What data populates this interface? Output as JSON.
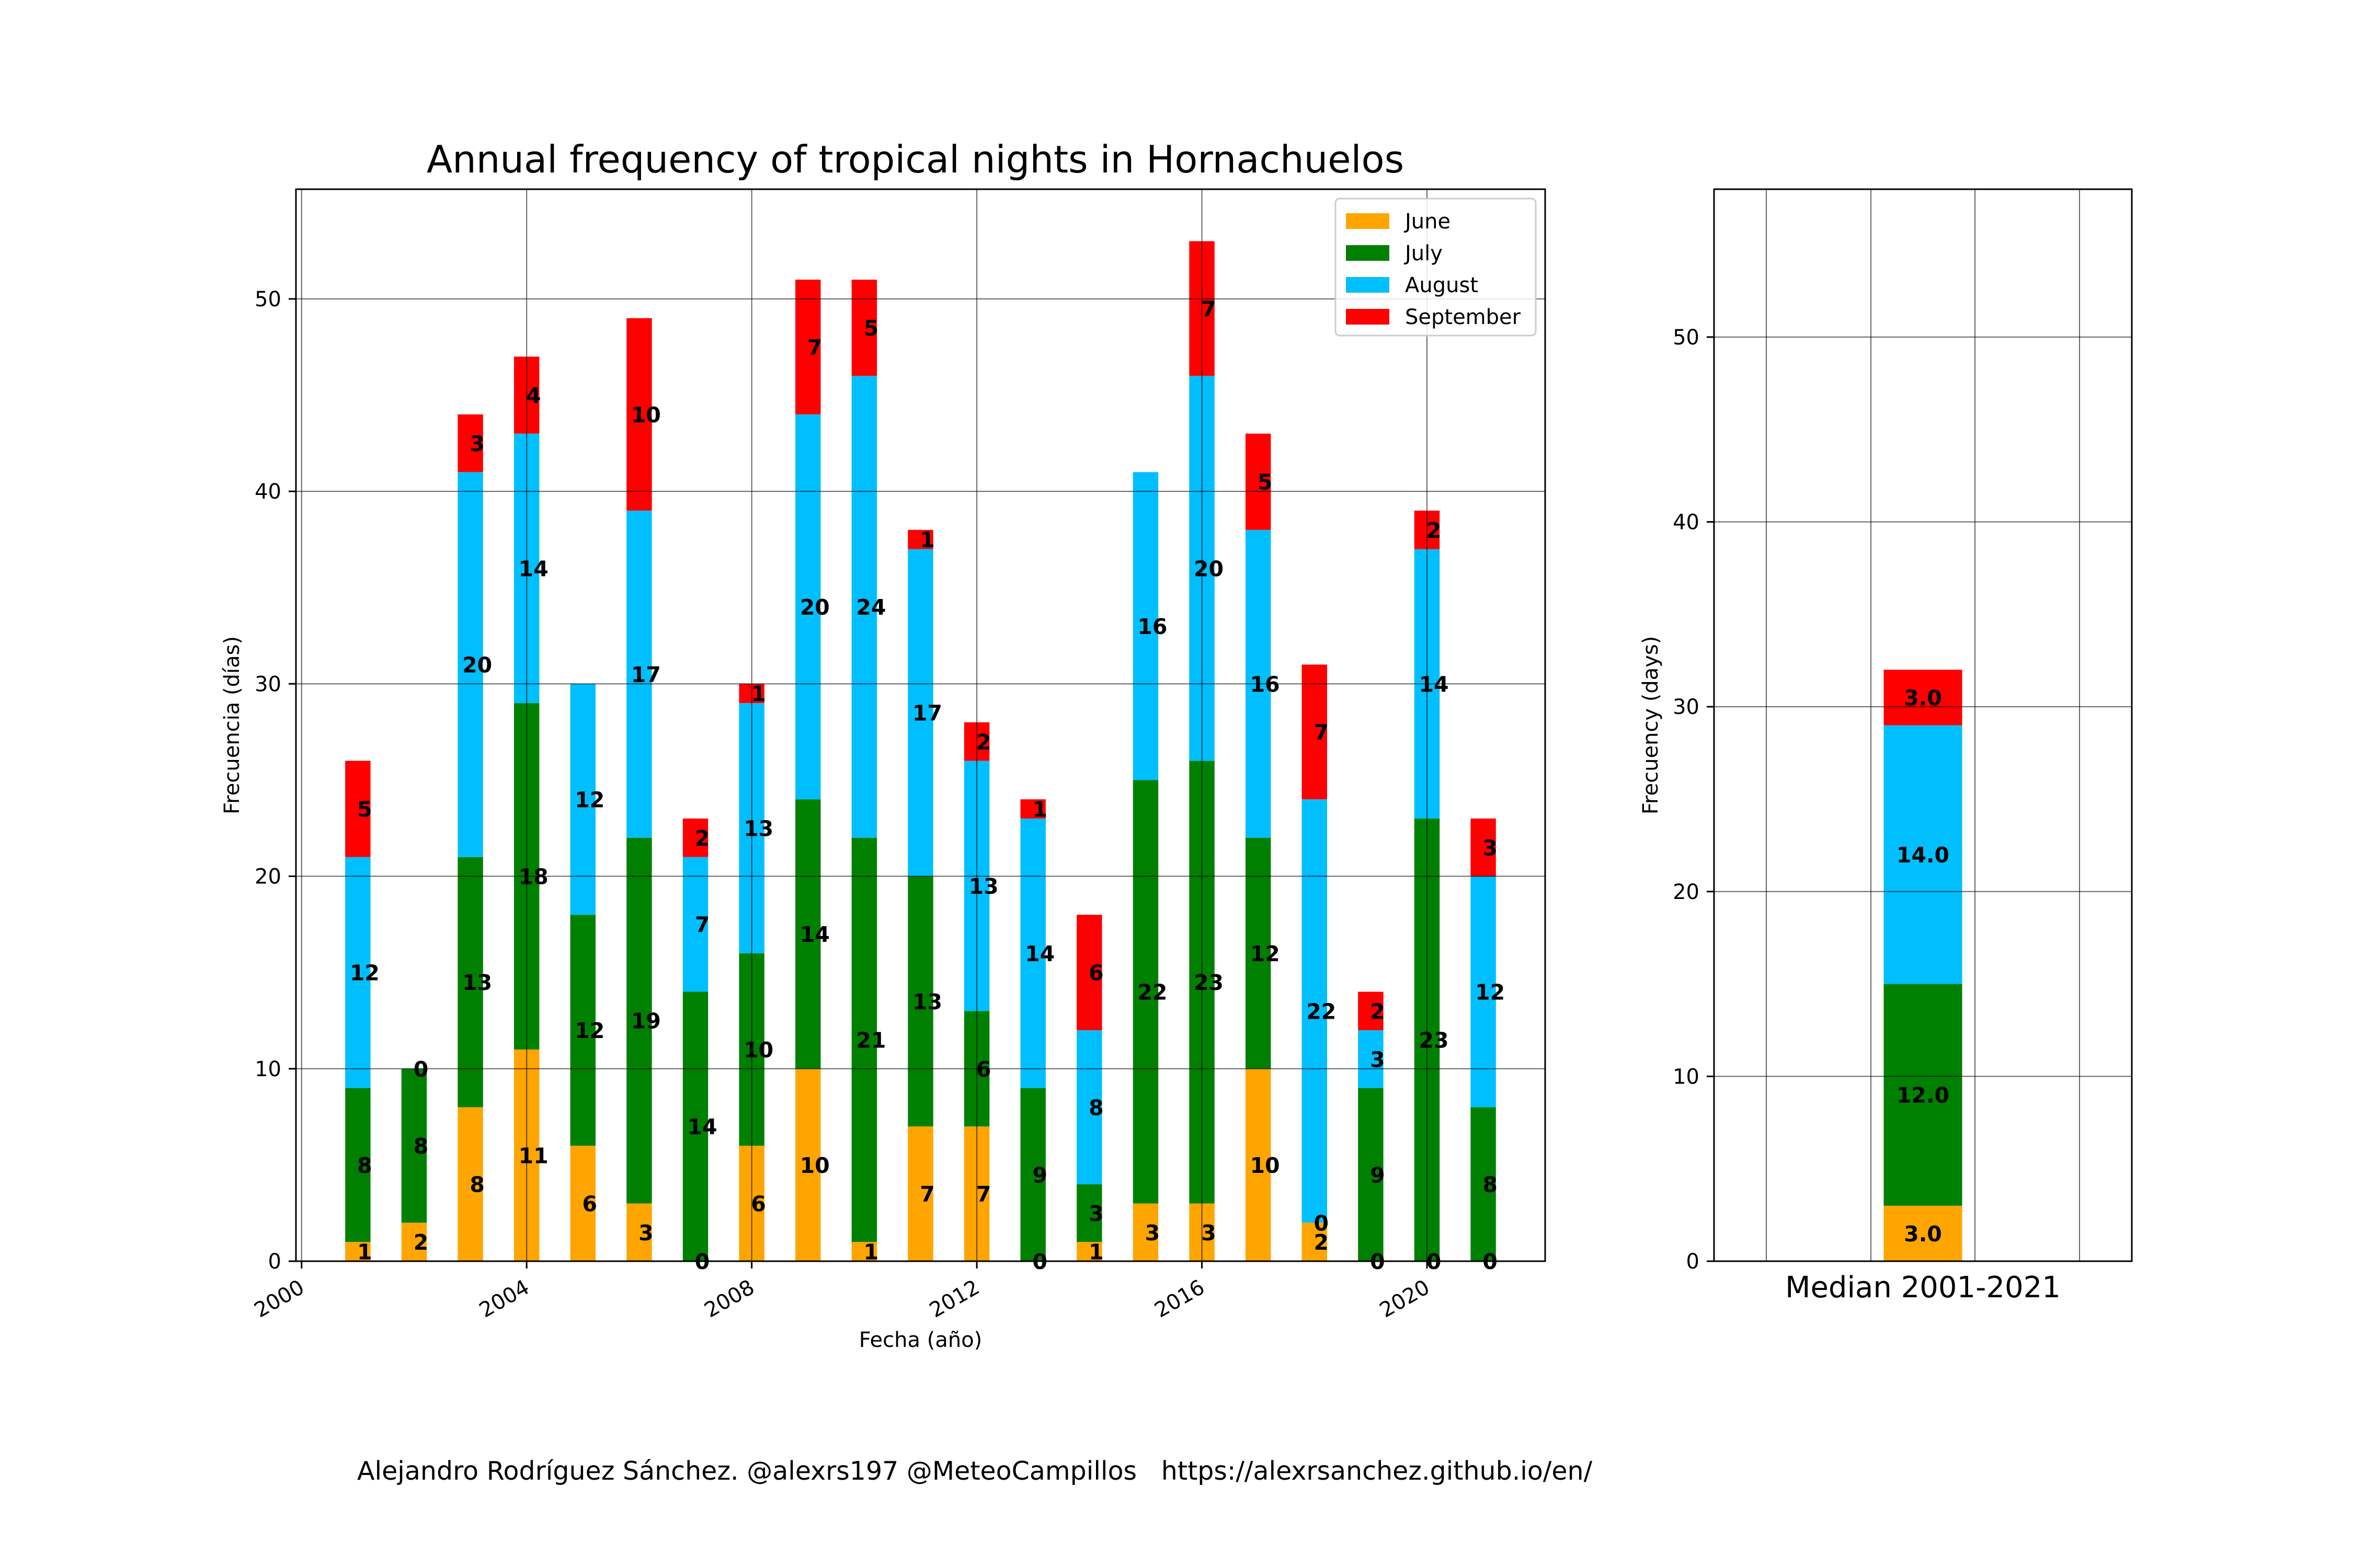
{
  "chart_data": [
    {
      "type": "bar",
      "stacked": true,
      "title": "Annual frequency of tropical nights in Hornachuelos",
      "xlabel": "Fecha (año)",
      "ylabel": "Frecuencia (días)",
      "xlim": [
        1999.9,
        2022.1
      ],
      "ylim": [
        0,
        55.7
      ],
      "xticks": [
        2000,
        2004,
        2008,
        2012,
        2016,
        2020
      ],
      "xtick_labels": [
        "2000",
        "2004",
        "2008",
        "2012",
        "2016",
        "2020"
      ],
      "yticks": [
        0,
        10,
        20,
        30,
        40,
        50
      ],
      "ytick_labels": [
        "0",
        "10",
        "20",
        "30",
        "40",
        "50"
      ],
      "grid": true,
      "legend_position": "top-right",
      "x": [
        2001,
        2002,
        2003,
        2004,
        2005,
        2006,
        2007,
        2008,
        2009,
        2010,
        2011,
        2012,
        2013,
        2014,
        2015,
        2016,
        2017,
        2018,
        2019,
        2020,
        2021
      ],
      "series": [
        {
          "name": "June",
          "color": "#ffa500",
          "values": [
            1,
            2,
            8,
            11,
            6,
            3,
            0,
            6,
            10,
            1,
            7,
            7,
            0,
            1,
            3,
            3,
            10,
            2,
            0,
            0,
            0
          ],
          "labels": [
            "1",
            "2",
            "8",
            "11",
            "6",
            "3",
            "0",
            "6",
            "10",
            "1",
            "7",
            "7",
            "0",
            "1",
            "3",
            "3",
            "10",
            "2",
            "0",
            "0",
            "0"
          ]
        },
        {
          "name": "July",
          "color": "#008000",
          "values": [
            8,
            8,
            13,
            18,
            12,
            19,
            14,
            10,
            14,
            21,
            13,
            6,
            9,
            3,
            22,
            23,
            12,
            0,
            9,
            23,
            8
          ],
          "labels": [
            "8",
            "8",
            "13",
            "18",
            "12",
            "19",
            "14",
            "10",
            "14",
            "21",
            "13",
            "6",
            "9",
            "3",
            "22",
            "23",
            "12",
            "0",
            "9",
            "23",
            "8"
          ]
        },
        {
          "name": "August",
          "color": "#00bfff",
          "values": [
            12,
            0,
            20,
            14,
            12,
            17,
            7,
            13,
            20,
            24,
            17,
            13,
            14,
            8,
            16,
            20,
            16,
            22,
            3,
            14,
            12
          ],
          "labels": [
            "12",
            "0",
            "20",
            "14",
            "12",
            "17",
            "7",
            "13",
            "20",
            "24",
            "17",
            "13",
            "14",
            "8",
            "16",
            "20",
            "16",
            "22",
            "3",
            "14",
            "12"
          ]
        },
        {
          "name": "September",
          "color": "#ff0000",
          "values": [
            5,
            0,
            3,
            4,
            0,
            10,
            2,
            1,
            7,
            5,
            1,
            2,
            1,
            6,
            0,
            7,
            5,
            7,
            2,
            2,
            3
          ],
          "labels": [
            "5",
            "",
            "3",
            "4",
            "",
            "10",
            "2",
            "1",
            "7",
            "5",
            "1",
            "2",
            "1",
            "6",
            "",
            "7",
            "5",
            "7",
            "2",
            "2",
            "3"
          ]
        }
      ]
    },
    {
      "type": "bar",
      "stacked": true,
      "ylabel": "Frecuency (days)",
      "categories": [
        "Median 2001-2021"
      ],
      "ylim": [
        0,
        58
      ],
      "yticks": [
        0,
        10,
        20,
        30,
        40,
        50
      ],
      "ytick_labels": [
        "0",
        "10",
        "20",
        "30",
        "40",
        "50"
      ],
      "grid": true,
      "series": [
        {
          "name": "June",
          "color": "#ffa500",
          "values": [
            3.0
          ],
          "labels": [
            "3.0"
          ]
        },
        {
          "name": "July",
          "color": "#008000",
          "values": [
            12.0
          ],
          "labels": [
            "12.0"
          ]
        },
        {
          "name": "August",
          "color": "#00bfff",
          "values": [
            14.0
          ],
          "labels": [
            "14.0"
          ]
        },
        {
          "name": "September",
          "color": "#ff0000",
          "values": [
            3.0
          ],
          "labels": [
            "3.0"
          ]
        }
      ]
    }
  ],
  "footer": {
    "credit": "Alejandro Rodríguez Sánchez. @alexrs197 @MeteoCampillos   https://alexrsanchez.github.io/en/"
  }
}
